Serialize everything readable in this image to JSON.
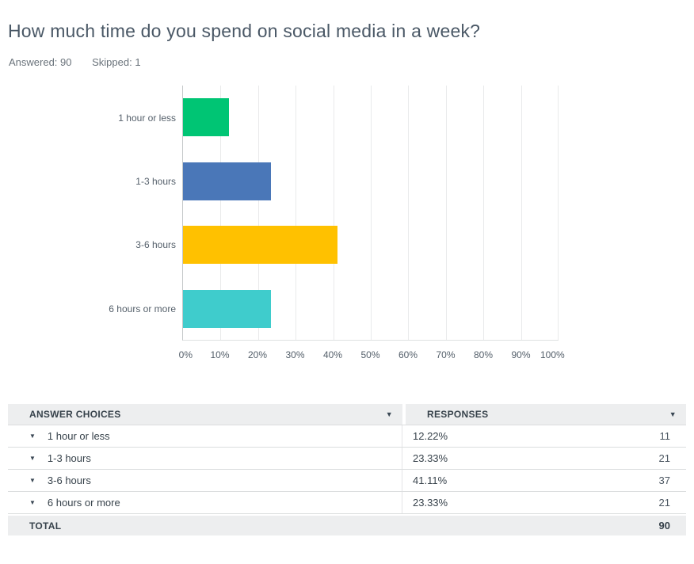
{
  "header": {
    "title": "How much time do you spend on social media in a week?",
    "answered": "Answered: 90",
    "skipped": "Skipped: 1"
  },
  "chart_data": {
    "type": "bar",
    "orientation": "horizontal",
    "title": "",
    "categories": [
      "1 hour or less",
      "1-3 hours",
      "3-6 hours",
      "6 hours or more"
    ],
    "values": [
      12.22,
      23.33,
      41.11,
      23.33
    ],
    "unit": "%",
    "colors": [
      "#00C574",
      "#4A77B8",
      "#FFC100",
      "#3FCCCC"
    ],
    "xlim": [
      0,
      100
    ],
    "x_ticks": [
      "0%",
      "10%",
      "20%",
      "30%",
      "40%",
      "50%",
      "60%",
      "70%",
      "80%",
      "90%",
      "100%"
    ],
    "grid": "vertical",
    "legend": "none"
  },
  "table": {
    "header": {
      "answer_choices": "ANSWER CHOICES",
      "responses": "RESPONSES"
    },
    "rows": [
      {
        "choice": "1 hour or less",
        "percent": "12.22%",
        "count": "11"
      },
      {
        "choice": "1-3 hours",
        "percent": "23.33%",
        "count": "21"
      },
      {
        "choice": "3-6 hours",
        "percent": "41.11%",
        "count": "37"
      },
      {
        "choice": "6 hours or more",
        "percent": "23.33%",
        "count": "21"
      }
    ],
    "total": {
      "label": "TOTAL",
      "value": "90"
    }
  },
  "icons": {
    "dropdown": "▼"
  },
  "colors": {
    "title_text": "#4A5866",
    "body_text": "#37424B",
    "muted_text": "#6A737B",
    "table_header_bg": "#EDEEEF",
    "row_border": "#DBDDDE",
    "axis_line": "#C5C8CA",
    "gridline": "#E9EAEB"
  }
}
